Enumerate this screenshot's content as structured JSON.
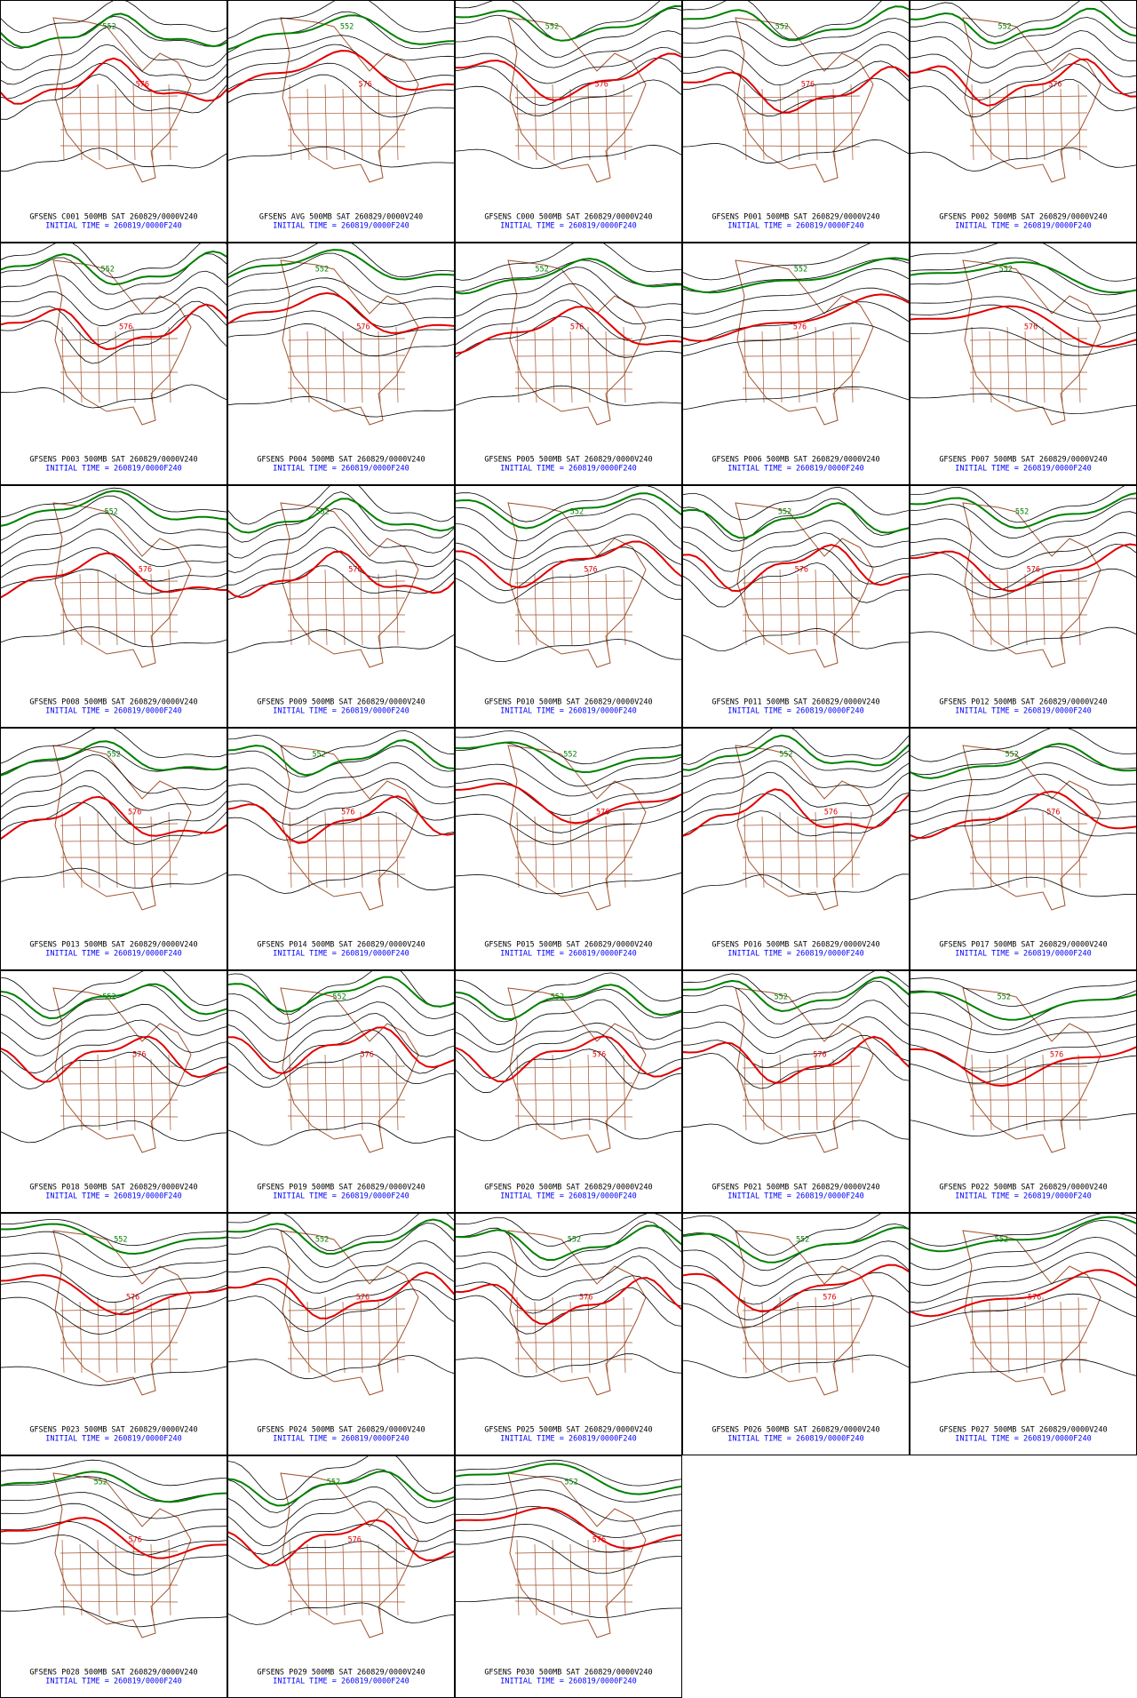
{
  "panels": [
    {
      "title": "GFSENS C001 500MB SAT 260829/0000V240",
      "initial_time": "INITIAL TIME = 260819/0000F240",
      "contour_labels": [
        "552",
        "576"
      ]
    },
    {
      "title": "GFSENS AVG 500MB SAT 260829/0000V240",
      "initial_time": "INITIAL TIME = 260819/0000F240",
      "contour_labels": [
        "552",
        "576"
      ]
    },
    {
      "title": "GFSENS C000 500MB SAT 260829/0000V240",
      "initial_time": "INITIAL TIME = 260819/0000F240",
      "contour_labels": [
        "552",
        "576"
      ]
    },
    {
      "title": "GFSENS P001 500MB SAT 260829/0000V240",
      "initial_time": "INITIAL TIME = 260819/0000F240",
      "contour_labels": [
        "552",
        "576"
      ]
    },
    {
      "title": "GFSENS P002 500MB SAT 260829/0000V240",
      "initial_time": "INITIAL TIME = 260819/0000F240",
      "contour_labels": [
        "552",
        "576"
      ]
    },
    {
      "title": "GFSENS P003 500MB SAT 260829/0000V240",
      "initial_time": "INITIAL TIME = 260819/0000F240",
      "contour_labels": [
        "552",
        "576"
      ]
    },
    {
      "title": "GFSENS P004 500MB SAT 260829/0000V240",
      "initial_time": "INITIAL TIME = 260819/0000F240",
      "contour_labels": [
        "552",
        "576"
      ]
    },
    {
      "title": "GFSENS P005 500MB SAT 260829/0000V240",
      "initial_time": "INITIAL TIME = 260819/0000F240",
      "contour_labels": [
        "552",
        "576"
      ]
    },
    {
      "title": "GFSENS P006 500MB SAT 260829/0000V240",
      "initial_time": "INITIAL TIME = 260819/0000F240",
      "contour_labels": [
        "552",
        "576"
      ]
    },
    {
      "title": "GFSENS P007 500MB SAT 260829/0000V240",
      "initial_time": "INITIAL TIME = 260819/0000F240",
      "contour_labels": [
        "552",
        "576"
      ]
    },
    {
      "title": "GFSENS P008 500MB SAT 260829/0000V240",
      "initial_time": "INITIAL TIME = 260819/0000F240",
      "contour_labels": [
        "552",
        "576"
      ]
    },
    {
      "title": "GFSENS P009 500MB SAT 260829/0000V240",
      "initial_time": "INITIAL TIME = 260819/0000F240",
      "contour_labels": [
        "552",
        "576"
      ]
    },
    {
      "title": "GFSENS P010 500MB SAT 260829/0000V240",
      "initial_time": "INITIAL TIME = 260819/0000F240",
      "contour_labels": [
        "552",
        "576"
      ]
    },
    {
      "title": "GFSENS P011 500MB SAT 260829/0000V240",
      "initial_time": "INITIAL TIME = 260819/0000F240",
      "contour_labels": [
        "552",
        "576"
      ]
    },
    {
      "title": "GFSENS P012 500MB SAT 260829/0000V240",
      "initial_time": "INITIAL TIME = 260819/0000F240",
      "contour_labels": [
        "552",
        "576"
      ]
    },
    {
      "title": "GFSENS P013 500MB SAT 260829/0000V240",
      "initial_time": "INITIAL TIME = 260819/0000F240",
      "contour_labels": [
        "552",
        "576"
      ]
    },
    {
      "title": "GFSENS P014 500MB SAT 260829/0000V240",
      "initial_time": "INITIAL TIME = 260819/0000F240",
      "contour_labels": [
        "552",
        "576"
      ]
    },
    {
      "title": "GFSENS P015 500MB SAT 260829/0000V240",
      "initial_time": "INITIAL TIME = 260819/0000F240",
      "contour_labels": [
        "552",
        "576"
      ]
    },
    {
      "title": "GFSENS P016 500MB SAT 260829/0000V240",
      "initial_time": "INITIAL TIME = 260819/0000F240",
      "contour_labels": [
        "552",
        "576"
      ]
    },
    {
      "title": "GFSENS P017 500MB SAT 260829/0000V240",
      "initial_time": "INITIAL TIME = 260819/0000F240",
      "contour_labels": [
        "552",
        "576"
      ]
    },
    {
      "title": "GFSENS P018 500MB SAT 260829/0000V240",
      "initial_time": "INITIAL TIME = 260819/0000F240",
      "contour_labels": [
        "552",
        "576"
      ]
    },
    {
      "title": "GFSENS P019 500MB SAT 260829/0000V240",
      "initial_time": "INITIAL TIME = 260819/0000F240",
      "contour_labels": [
        "552",
        "576"
      ]
    },
    {
      "title": "GFSENS P020 500MB SAT 260829/0000V240",
      "initial_time": "INITIAL TIME = 260819/0000F240",
      "contour_labels": [
        "552",
        "576"
      ]
    },
    {
      "title": "GFSENS P021 500MB SAT 260829/0000V240",
      "initial_time": "INITIAL TIME = 260819/0000F240",
      "contour_labels": [
        "552",
        "576"
      ]
    },
    {
      "title": "GFSENS P022 500MB SAT 260829/0000V240",
      "initial_time": "INITIAL TIME = 260819/0000F240",
      "contour_labels": [
        "552",
        "576"
      ]
    },
    {
      "title": "GFSENS P023 500MB SAT 260829/0000V240",
      "initial_time": "INITIAL TIME = 260819/0000F240",
      "contour_labels": [
        "552",
        "576"
      ]
    },
    {
      "title": "GFSENS P024 500MB SAT 260829/0000V240",
      "initial_time": "INITIAL TIME = 260819/0000F240",
      "contour_labels": [
        "552",
        "576"
      ]
    },
    {
      "title": "GFSENS P025 500MB SAT 260829/0000V240",
      "initial_time": "INITIAL TIME = 260819/0000F240",
      "contour_labels": [
        "552",
        "576"
      ]
    },
    {
      "title": "GFSENS P026 500MB SAT 260829/0000V240",
      "initial_time": "INITIAL TIME = 260819/0000F240",
      "contour_labels": [
        "552",
        "576"
      ]
    },
    {
      "title": "GFSENS P027 500MB SAT 260829/0000V240",
      "initial_time": "INITIAL TIME = 260819/0000F240",
      "contour_labels": [
        "552",
        "576"
      ]
    },
    {
      "title": "GFSENS P028 500MB SAT 260829/0000V240",
      "initial_time": "INITIAL TIME = 260819/0000F240",
      "contour_labels": [
        "552",
        "576"
      ]
    },
    {
      "title": "GFSENS P029 500MB SAT 260829/0000V240",
      "initial_time": "INITIAL TIME = 260819/0000F240",
      "contour_labels": [
        "552",
        "576"
      ]
    },
    {
      "title": "GFSENS P030 500MB SAT 260829/0000V240",
      "initial_time": "INITIAL TIME = 260819/0000F240",
      "contour_labels": [
        "552",
        "576"
      ]
    }
  ]
}
